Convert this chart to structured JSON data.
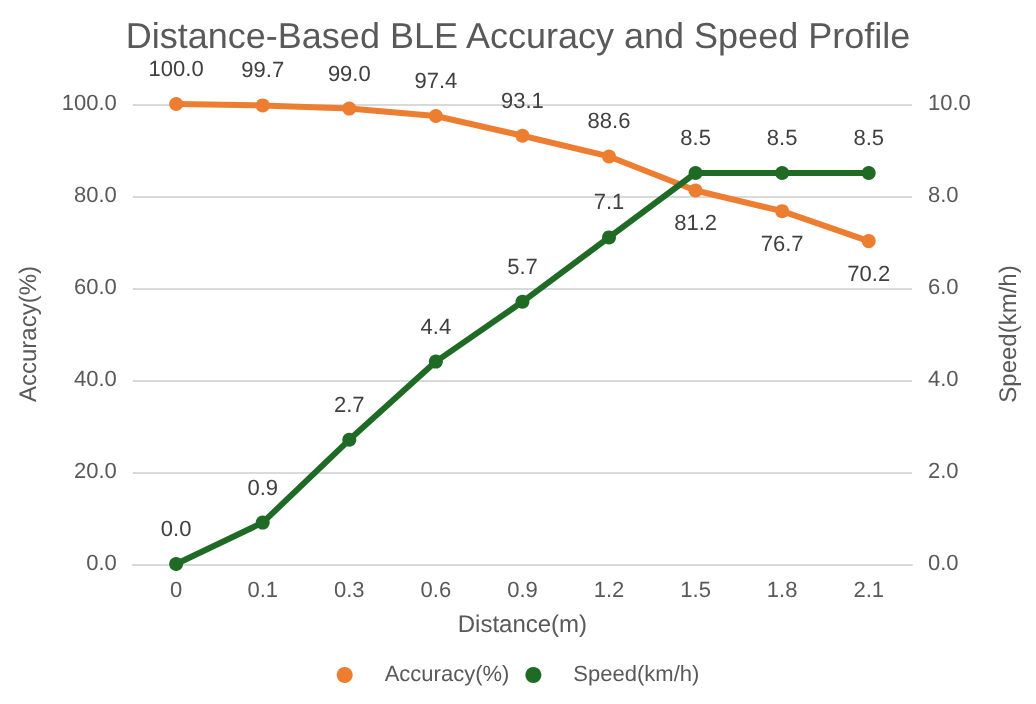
{
  "chart_data": {
    "type": "line",
    "title": "Distance-Based BLE Accuracy and Speed Profile",
    "xlabel": "Distance(m)",
    "ylabel": "Accuracy(%)",
    "y2label": "Speed(km/h)",
    "categories": [
      "0",
      "0.1",
      "0.3",
      "0.6",
      "0.9",
      "1.2",
      "1.5",
      "1.8",
      "2.1"
    ],
    "series": [
      {
        "name": "Accuracy(%)",
        "color": "#ed7d31",
        "values": [
          100.0,
          99.7,
          99.0,
          97.4,
          93.1,
          88.6,
          81.2,
          76.7,
          70.2
        ],
        "value_labels": [
          "100.0",
          "99.7",
          "99.0",
          "97.4",
          "93.1",
          "88.6",
          "81.2",
          "76.7",
          "70.2"
        ]
      },
      {
        "name": "Speed(km/h)",
        "color": "#1f6b25",
        "axis": "y2",
        "values": [
          0.0,
          0.9,
          2.7,
          4.4,
          5.7,
          7.1,
          8.5,
          8.5,
          8.5
        ],
        "value_labels": [
          "0.0",
          "0.9",
          "2.7",
          "4.4",
          "5.7",
          "7.1",
          "8.5",
          "8.5",
          "8.5"
        ]
      }
    ],
    "ylim": [
      0,
      100
    ],
    "yticks": [
      {
        "value": 0,
        "label": "0.0"
      },
      {
        "value": 20,
        "label": "20.0"
      },
      {
        "value": 40,
        "label": "40.0"
      },
      {
        "value": 60,
        "label": "60.0"
      },
      {
        "value": 80,
        "label": "80.0"
      },
      {
        "value": 100,
        "label": "100.0"
      }
    ],
    "y2lim": [
      0,
      10
    ],
    "y2ticks": [
      {
        "value": 0,
        "label": "0.0"
      },
      {
        "value": 2,
        "label": "2.0"
      },
      {
        "value": 4,
        "label": "4.0"
      },
      {
        "value": 6,
        "label": "6.0"
      },
      {
        "value": 8,
        "label": "8.0"
      },
      {
        "value": 10,
        "label": "10.0"
      }
    ],
    "grid": "y",
    "legend": "bottom",
    "marker": "circle",
    "line_style": "solid"
  }
}
